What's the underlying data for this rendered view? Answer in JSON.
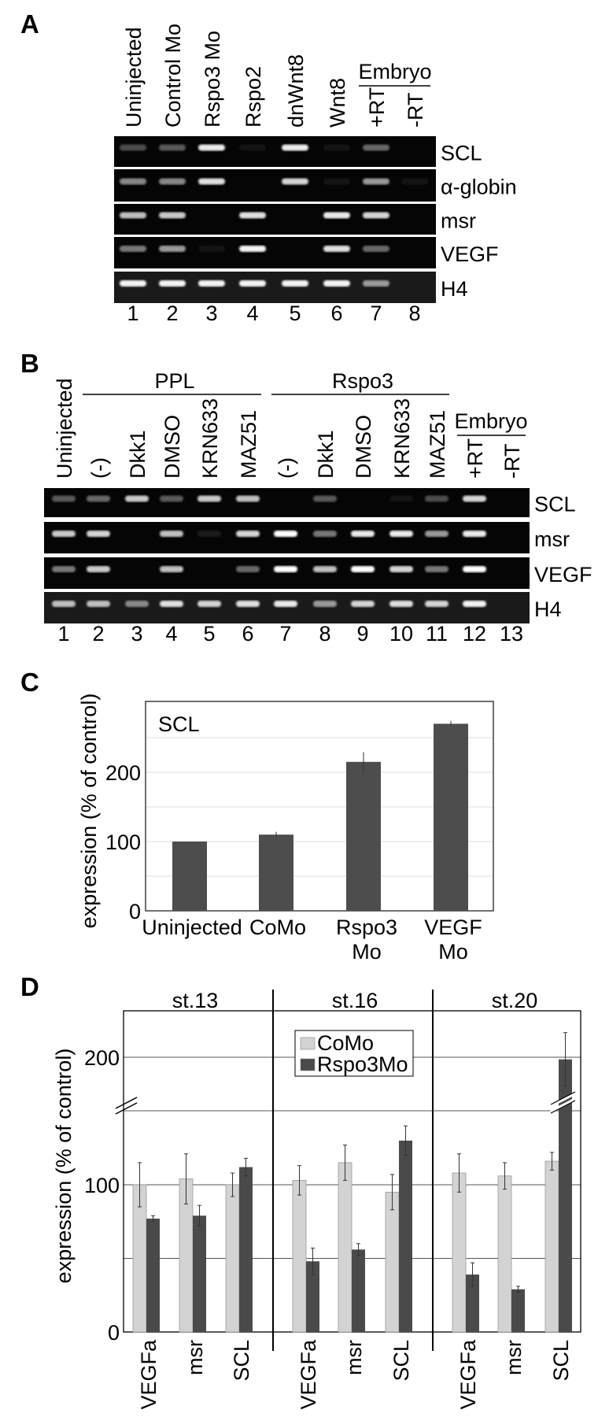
{
  "panels": {
    "a": "A",
    "b": "B",
    "c": "C",
    "d": "D"
  },
  "gel_a": {
    "columns": [
      "Uninjected",
      "Control Mo",
      "Rspo3 Mo",
      "Rspo2",
      "dnWnt8",
      "Wnt8",
      "+RT",
      "-RT"
    ],
    "group_label": "Embryo",
    "lane_numbers": [
      "1",
      "2",
      "3",
      "4",
      "5",
      "6",
      "7",
      "8"
    ],
    "rows": [
      {
        "label": "SCL",
        "intensity": [
          0.35,
          0.4,
          0.9,
          0.05,
          0.9,
          0.05,
          0.45,
          0
        ]
      },
      {
        "label": "α-globin",
        "intensity": [
          0.55,
          0.55,
          0.85,
          0,
          0.8,
          0.05,
          0.6,
          0.05
        ]
      },
      {
        "label": "msr",
        "intensity": [
          0.7,
          0.75,
          0,
          0.85,
          0,
          0.9,
          0.8,
          0
        ]
      },
      {
        "label": "VEGF",
        "intensity": [
          0.5,
          0.6,
          0.05,
          0.95,
          0,
          0.85,
          0.45,
          0
        ]
      },
      {
        "label": "H4",
        "intensity": [
          0.95,
          0.95,
          0.95,
          0.95,
          0.95,
          0.95,
          0.6,
          0
        ]
      }
    ]
  },
  "gel_b": {
    "columns": [
      "Uninjected",
      "(-)",
      "Dkk1",
      "DMSO",
      "KRN633",
      "MAZ51",
      "(-)",
      "Dkk1",
      "DMSO",
      "KRN633",
      "MAZ51",
      "+RT",
      "-RT"
    ],
    "groups": [
      "PPL",
      "Rspo3",
      "Embryo"
    ],
    "lane_numbers": [
      "1",
      "2",
      "3",
      "4",
      "5",
      "6",
      "7",
      "8",
      "9",
      "10",
      "11",
      "12",
      "13"
    ],
    "rows": [
      {
        "label": "SCL",
        "intensity": [
          0.4,
          0.45,
          0.75,
          0.4,
          0.75,
          0.7,
          0,
          0.4,
          0,
          0.05,
          0.35,
          0.8,
          0
        ]
      },
      {
        "label": "msr",
        "intensity": [
          0.75,
          0.8,
          0,
          0.7,
          0.1,
          0.8,
          1,
          0.5,
          0.9,
          0.9,
          0.6,
          0.9,
          0
        ]
      },
      {
        "label": "VEGF",
        "intensity": [
          0.5,
          0.75,
          0,
          0.7,
          0,
          0.45,
          1,
          0.7,
          1,
          0.8,
          0.5,
          1,
          0
        ]
      },
      {
        "label": "H4",
        "intensity": [
          0.7,
          0.7,
          0.55,
          0.85,
          0.8,
          0.85,
          0.9,
          0.6,
          0.8,
          0.85,
          0.8,
          0.95,
          0
        ]
      }
    ]
  },
  "chart_data": [
    {
      "type": "bar",
      "title": "SCL",
      "ylabel": "expression (% of control)",
      "categories": [
        "Uninjected",
        "CoMo",
        "Rspo3 Mo",
        "VEGF Mo"
      ],
      "category_lines": [
        [
          "Uninjected"
        ],
        [
          "CoMo"
        ],
        [
          "Rspo3",
          "Mo"
        ],
        [
          "VEGF",
          "Mo"
        ]
      ],
      "values": [
        100,
        110,
        215,
        270
      ],
      "errors": [
        0,
        4,
        14,
        4
      ],
      "yticks": [
        "0",
        "100",
        "200"
      ],
      "ylim": [
        0,
        320
      ],
      "grid": true,
      "color": "#4d4d4d"
    },
    {
      "type": "bar",
      "ylabel": "expression (% of control)",
      "panels": [
        "st.13",
        "st.16",
        "st.20"
      ],
      "categories": [
        "VEGFa",
        "msr",
        "SCL"
      ],
      "series": [
        {
          "name": "CoMo",
          "color": "#d3d3d3",
          "values": [
            [
              100,
              104,
              100
            ],
            [
              103,
              115,
              95
            ],
            [
              108,
              106,
              116
            ]
          ],
          "errors": [
            [
              15,
              17,
              8
            ],
            [
              10,
              12,
              12
            ],
            [
              13,
              9,
              6
            ]
          ]
        },
        {
          "name": "Rspo3Mo",
          "color": "#4a4a4a",
          "values": [
            [
              77,
              79,
              112
            ],
            [
              48,
              56,
              130
            ],
            [
              39,
              29,
              198
            ]
          ],
          "errors": [
            [
              2,
              7,
              6
            ],
            [
              9,
              4,
              10
            ],
            [
              8,
              2,
              25
            ]
          ]
        }
      ],
      "yticks": [
        "0",
        "100",
        "200"
      ],
      "ylim": [
        0,
        230
      ],
      "axis_break": true,
      "grid": true,
      "legend": "top-center"
    }
  ]
}
